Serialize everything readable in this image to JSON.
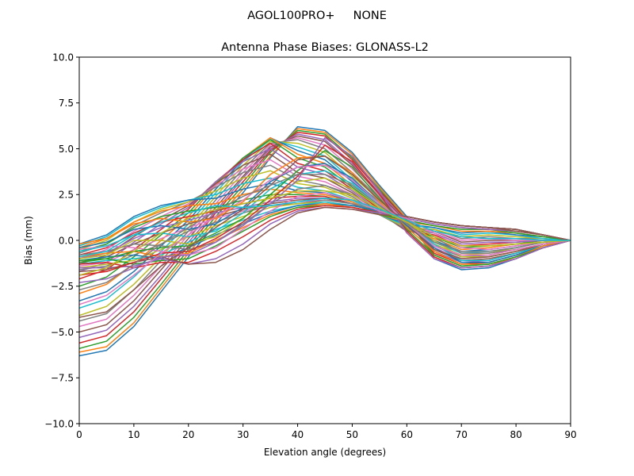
{
  "figure": {
    "suptitle": "AGOL100PRO+     NONE"
  },
  "chart_data": {
    "type": "line",
    "title": "Antenna Phase Biases: GLONASS-L2",
    "xlabel": "Elevation angle (degrees)",
    "ylabel": "Bias (mm)",
    "xlim": [
      0,
      90
    ],
    "ylim": [
      -10,
      10
    ],
    "xticks": [
      0,
      10,
      20,
      30,
      40,
      50,
      60,
      70,
      80,
      90
    ],
    "yticks": [
      -10.0,
      -7.5,
      -5.0,
      -2.5,
      0.0,
      2.5,
      5.0,
      7.5,
      10.0
    ],
    "xtick_labels": [
      "0",
      "10",
      "20",
      "30",
      "40",
      "50",
      "60",
      "70",
      "80",
      "90"
    ],
    "ytick_labels": [
      "−10.0",
      "−7.5",
      "−5.0",
      "−2.5",
      "0.0",
      "2.5",
      "5.0",
      "7.5",
      "10.0"
    ],
    "grid": false,
    "legend": "none",
    "x": [
      0,
      5,
      10,
      15,
      20,
      25,
      30,
      35,
      40,
      45,
      50,
      55,
      60,
      65,
      70,
      75,
      80,
      85,
      90
    ],
    "series_colors": [
      "#1f77b4",
      "#ff7f0e",
      "#2ca02c",
      "#d62728",
      "#9467bd",
      "#8c564b",
      "#e377c2",
      "#7f7f7f",
      "#bcbd22",
      "#17becf"
    ],
    "series": [
      {
        "values": [
          -6.3,
          -6.0,
          -4.7,
          -2.8,
          -0.9,
          0.9,
          2.6,
          4.5,
          6.2,
          6.0,
          4.8,
          3.0,
          1.3,
          -1.0,
          -1.6,
          -1.5,
          -1.0,
          -0.4,
          0.0
        ]
      },
      {
        "values": [
          -6.1,
          -5.8,
          -4.5,
          -2.6,
          -0.7,
          1.1,
          2.8,
          4.6,
          6.1,
          5.9,
          4.7,
          2.9,
          1.2,
          -0.9,
          -1.5,
          -1.4,
          -0.9,
          -0.4,
          0.0
        ]
      },
      {
        "values": [
          -5.9,
          -5.5,
          -4.2,
          -2.4,
          -0.5,
          1.3,
          3.0,
          4.8,
          6.0,
          5.8,
          4.5,
          2.8,
          1.1,
          -0.8,
          -1.4,
          -1.3,
          -0.9,
          -0.3,
          0.0
        ]
      },
      {
        "values": [
          -5.6,
          -5.2,
          -3.9,
          -2.1,
          -0.3,
          1.5,
          3.2,
          4.9,
          5.9,
          5.7,
          4.4,
          2.7,
          1.1,
          -0.7,
          -1.3,
          -1.2,
          -0.8,
          -0.3,
          0.0
        ]
      },
      {
        "values": [
          -5.3,
          -4.9,
          -3.6,
          -1.9,
          -0.1,
          1.6,
          3.4,
          5.0,
          5.8,
          5.5,
          4.2,
          2.6,
          1.0,
          -0.6,
          -1.2,
          -1.1,
          -0.7,
          -0.3,
          0.0
        ]
      },
      {
        "values": [
          -5.0,
          -4.6,
          -3.3,
          -1.6,
          0.1,
          1.8,
          3.5,
          5.1,
          5.7,
          5.4,
          4.1,
          2.5,
          1.0,
          -0.5,
          -1.1,
          -1.0,
          -0.7,
          -0.2,
          0.0
        ]
      },
      {
        "values": [
          -4.7,
          -4.3,
          -3.0,
          -1.4,
          0.3,
          2.0,
          3.7,
          5.2,
          5.6,
          5.2,
          3.9,
          2.4,
          0.9,
          -0.4,
          -1.0,
          -0.9,
          -0.6,
          -0.2,
          0.0
        ]
      },
      {
        "values": [
          -4.4,
          -4.0,
          -2.7,
          -1.1,
          0.5,
          2.2,
          3.9,
          5.3,
          5.5,
          5.0,
          3.7,
          2.3,
          0.8,
          -0.3,
          -0.9,
          -0.8,
          -0.5,
          -0.2,
          0.0
        ]
      },
      {
        "values": [
          -4.1,
          -3.6,
          -2.4,
          -0.9,
          0.7,
          2.4,
          4.1,
          5.4,
          5.3,
          4.8,
          3.5,
          2.2,
          0.8,
          -0.2,
          -0.8,
          -0.7,
          -0.4,
          -0.1,
          0.0
        ]
      },
      {
        "values": [
          -3.7,
          -3.2,
          -2.0,
          -0.6,
          0.9,
          2.6,
          4.3,
          5.5,
          5.1,
          4.6,
          3.3,
          2.1,
          0.7,
          -0.1,
          -0.7,
          -0.6,
          -0.4,
          -0.1,
          0.0
        ]
      },
      {
        "values": [
          -3.3,
          -2.8,
          -1.7,
          -0.3,
          1.1,
          2.8,
          4.4,
          5.6,
          4.9,
          4.4,
          3.2,
          2.0,
          0.7,
          0.0,
          -0.6,
          -0.5,
          -0.3,
          -0.1,
          0.0
        ]
      },
      {
        "values": [
          -2.9,
          -2.4,
          -1.3,
          0.0,
          1.3,
          3.0,
          4.5,
          5.6,
          4.7,
          4.2,
          3.0,
          1.9,
          0.6,
          0.1,
          -0.5,
          -0.4,
          -0.2,
          -0.1,
          0.0
        ]
      },
      {
        "values": [
          -2.5,
          -2.0,
          -0.9,
          0.3,
          1.5,
          3.1,
          4.5,
          5.5,
          4.5,
          4.0,
          2.9,
          1.8,
          0.6,
          0.2,
          -0.4,
          -0.3,
          -0.2,
          0.0,
          0.0
        ]
      },
      {
        "values": [
          -2.1,
          -1.6,
          -0.5,
          0.6,
          1.7,
          3.2,
          4.4,
          5.3,
          4.2,
          3.8,
          2.8,
          1.7,
          0.5,
          0.3,
          -0.3,
          -0.2,
          -0.1,
          0.0,
          0.0
        ]
      },
      {
        "values": [
          -1.7,
          -1.2,
          -0.1,
          0.9,
          1.8,
          3.2,
          4.3,
          5.0,
          4.0,
          3.6,
          2.7,
          1.6,
          0.5,
          0.4,
          -0.2,
          -0.1,
          -0.1,
          0.0,
          0.0
        ]
      },
      {
        "values": [
          -1.3,
          -0.8,
          0.2,
          1.1,
          1.9,
          3.1,
          4.1,
          4.7,
          3.7,
          3.4,
          2.6,
          1.5,
          0.5,
          0.5,
          -0.1,
          0.0,
          0.0,
          0.0,
          0.0
        ]
      },
      {
        "values": [
          -1.0,
          -0.5,
          0.5,
          1.3,
          2.0,
          3.0,
          3.9,
          4.4,
          3.5,
          3.2,
          2.5,
          1.5,
          0.6,
          0.5,
          0.0,
          0.1,
          0.0,
          0.0,
          0.0
        ]
      },
      {
        "values": [
          -0.7,
          -0.2,
          0.8,
          1.5,
          2.1,
          2.9,
          3.7,
          4.1,
          3.3,
          3.0,
          2.4,
          1.4,
          0.6,
          0.6,
          0.1,
          0.2,
          0.1,
          0.1,
          0.0
        ]
      },
      {
        "values": [
          -0.5,
          0.0,
          1.0,
          1.7,
          2.1,
          2.7,
          3.4,
          3.8,
          3.1,
          2.9,
          2.3,
          1.4,
          0.7,
          0.6,
          0.2,
          0.3,
          0.2,
          0.1,
          0.0
        ]
      },
      {
        "values": [
          -0.3,
          0.2,
          1.2,
          1.8,
          2.2,
          2.5,
          3.1,
          3.4,
          2.9,
          2.7,
          2.2,
          1.4,
          0.8,
          0.7,
          0.3,
          0.4,
          0.3,
          0.1,
          0.0
        ]
      },
      {
        "values": [
          -0.2,
          0.3,
          1.3,
          1.9,
          2.2,
          2.3,
          2.8,
          3.1,
          2.7,
          2.6,
          2.1,
          1.4,
          0.9,
          0.7,
          0.4,
          0.5,
          0.3,
          0.2,
          0.0
        ]
      },
      {
        "values": [
          -0.4,
          0.1,
          1.0,
          1.6,
          1.9,
          2.0,
          2.5,
          2.8,
          2.6,
          2.5,
          2.1,
          1.4,
          1.0,
          0.8,
          0.5,
          0.5,
          0.4,
          0.2,
          0.0
        ]
      },
      {
        "values": [
          -0.6,
          -0.2,
          0.7,
          1.3,
          1.6,
          1.8,
          2.2,
          2.5,
          2.5,
          2.4,
          2.0,
          1.4,
          1.1,
          0.8,
          0.6,
          0.6,
          0.4,
          0.2,
          0.0
        ]
      },
      {
        "values": [
          -0.8,
          -0.4,
          0.4,
          1.0,
          1.3,
          1.6,
          2.0,
          2.3,
          2.4,
          2.4,
          2.0,
          1.5,
          1.2,
          0.9,
          0.7,
          0.6,
          0.5,
          0.3,
          0.0
        ]
      },
      {
        "values": [
          -1.0,
          -0.7,
          0.1,
          0.7,
          1.1,
          1.5,
          1.8,
          2.1,
          2.3,
          2.3,
          2.0,
          1.5,
          1.2,
          0.9,
          0.7,
          0.6,
          0.5,
          0.3,
          0.0
        ]
      },
      {
        "values": [
          -1.2,
          -0.9,
          -0.2,
          0.4,
          0.9,
          1.3,
          1.7,
          2.0,
          2.2,
          2.3,
          2.0,
          1.5,
          1.3,
          1.0,
          0.8,
          0.7,
          0.5,
          0.3,
          0.0
        ]
      },
      {
        "values": [
          -1.4,
          -1.2,
          -0.5,
          0.1,
          0.7,
          1.2,
          1.6,
          1.9,
          2.1,
          2.2,
          2.0,
          1.6,
          1.3,
          1.0,
          0.8,
          0.7,
          0.6,
          0.3,
          0.0
        ]
      },
      {
        "values": [
          -1.6,
          -1.4,
          -0.8,
          -0.2,
          0.5,
          1.0,
          1.5,
          1.9,
          2.0,
          2.2,
          2.0,
          1.6,
          1.3,
          1.0,
          0.8,
          0.7,
          0.6,
          0.3,
          0.0
        ]
      },
      {
        "values": [
          -1.5,
          -1.3,
          -1.1,
          -0.5,
          0.2,
          0.8,
          1.3,
          1.8,
          2.0,
          2.1,
          1.9,
          1.6,
          1.3,
          1.0,
          0.8,
          0.7,
          0.6,
          0.3,
          0.0
        ]
      },
      {
        "values": [
          -1.3,
          -1.1,
          -1.0,
          -0.8,
          -0.1,
          0.6,
          1.1,
          1.6,
          1.9,
          2.1,
          1.9,
          1.6,
          1.3,
          1.0,
          0.8,
          0.7,
          0.6,
          0.3,
          0.0
        ]
      },
      {
        "values": [
          -1.1,
          -0.9,
          -0.8,
          -1.0,
          -0.4,
          0.3,
          0.9,
          1.5,
          1.9,
          2.0,
          1.9,
          1.6,
          1.3,
          1.0,
          0.8,
          0.7,
          0.6,
          0.3,
          0.0
        ]
      },
      {
        "values": [
          -0.9,
          -0.7,
          -0.6,
          -0.9,
          -0.7,
          0.0,
          0.7,
          1.4,
          1.8,
          2.0,
          1.8,
          1.5,
          1.3,
          1.0,
          0.8,
          0.7,
          0.6,
          0.3,
          0.0
        ]
      },
      {
        "values": [
          -1.1,
          -1.0,
          -1.3,
          -1.1,
          -1.0,
          -0.3,
          0.5,
          1.3,
          1.8,
          1.9,
          1.8,
          1.5,
          1.3,
          1.0,
          0.8,
          0.7,
          0.6,
          0.3,
          0.0
        ]
      },
      {
        "values": [
          -1.3,
          -1.2,
          -1.5,
          -1.2,
          -1.2,
          -0.6,
          0.2,
          1.1,
          1.7,
          1.9,
          1.8,
          1.5,
          1.3,
          1.0,
          0.8,
          0.7,
          0.6,
          0.3,
          0.0
        ]
      },
      {
        "values": [
          -1.5,
          -1.5,
          -1.4,
          -1.0,
          -1.3,
          -1.0,
          -0.2,
          0.9,
          1.6,
          1.8,
          1.7,
          1.5,
          1.3,
          1.0,
          0.8,
          0.7,
          0.6,
          0.3,
          0.0
        ]
      },
      {
        "values": [
          -1.7,
          -1.6,
          -1.2,
          -0.9,
          -1.3,
          -1.2,
          -0.5,
          0.6,
          1.5,
          1.8,
          1.7,
          1.4,
          1.3,
          1.0,
          0.8,
          0.7,
          0.6,
          0.3,
          0.0
        ]
      },
      {
        "values": [
          -0.5,
          -0.3,
          -0.4,
          -0.6,
          -0.8,
          -0.4,
          0.6,
          1.6,
          2.4,
          2.6,
          2.2,
          1.6,
          1.2,
          0.4,
          -0.4,
          -0.5,
          -0.3,
          -0.1,
          0.0
        ]
      },
      {
        "values": [
          -0.8,
          -0.6,
          -0.2,
          -0.3,
          -0.5,
          -0.1,
          0.9,
          2.0,
          2.8,
          3.0,
          2.5,
          1.7,
          1.1,
          0.2,
          -0.7,
          -0.7,
          -0.5,
          -0.2,
          0.0
        ]
      },
      {
        "values": [
          -1.0,
          -0.8,
          0.0,
          0.0,
          -0.2,
          0.2,
          1.2,
          2.4,
          3.2,
          3.4,
          2.8,
          1.8,
          1.0,
          0.0,
          -0.9,
          -0.9,
          -0.6,
          -0.2,
          0.0
        ]
      },
      {
        "values": [
          -0.6,
          -0.3,
          0.3,
          0.4,
          0.2,
          0.5,
          1.5,
          2.8,
          3.6,
          3.8,
          3.1,
          1.9,
          0.9,
          -0.2,
          -1.1,
          -1.1,
          -0.7,
          -0.3,
          0.0
        ]
      },
      {
        "values": [
          -0.4,
          -0.1,
          0.6,
          0.8,
          0.6,
          0.9,
          1.8,
          3.2,
          4.0,
          4.2,
          3.4,
          2.0,
          0.8,
          -0.4,
          -1.2,
          -1.2,
          -0.8,
          -0.3,
          0.0
        ]
      },
      {
        "values": [
          -0.2,
          0.1,
          0.9,
          1.2,
          1.0,
          1.2,
          2.1,
          3.6,
          4.5,
          4.6,
          3.7,
          2.1,
          0.7,
          -0.6,
          -1.3,
          -1.3,
          -0.9,
          -0.3,
          0.0
        ]
      },
      {
        "values": [
          -1.2,
          -1.0,
          -0.6,
          -0.4,
          -0.3,
          0.4,
          1.2,
          2.5,
          3.8,
          4.9,
          4.0,
          2.3,
          0.6,
          -0.8,
          -1.4,
          -1.3,
          -0.9,
          -0.4,
          0.0
        ]
      },
      {
        "values": [
          -1.9,
          -1.7,
          -1.2,
          -0.7,
          -0.6,
          0.1,
          1.0,
          2.2,
          3.5,
          5.2,
          4.3,
          2.5,
          0.5,
          -0.9,
          -1.5,
          -1.4,
          -1.0,
          -0.4,
          0.0
        ]
      },
      {
        "values": [
          -2.3,
          -2.1,
          -1.5,
          -0.9,
          -0.8,
          -0.1,
          0.8,
          2.0,
          3.3,
          5.6,
          4.6,
          2.7,
          0.4,
          -1.0,
          -1.5,
          -1.4,
          -1.0,
          -0.4,
          0.0
        ]
      },
      {
        "values": [
          -4.2,
          -3.9,
          -2.7,
          -1.4,
          -0.4,
          0.7,
          1.7,
          3.0,
          4.4,
          4.6,
          3.6,
          2.2,
          0.9,
          -0.5,
          -1.0,
          -0.9,
          -0.6,
          -0.2,
          0.0
        ]
      },
      {
        "values": [
          -3.5,
          -3.0,
          -1.9,
          -0.7,
          0.3,
          1.3,
          2.2,
          3.3,
          4.0,
          4.1,
          3.3,
          2.0,
          0.9,
          -0.3,
          -0.8,
          -0.8,
          -0.5,
          -0.2,
          0.0
        ]
      },
      {
        "values": [
          -2.7,
          -2.3,
          -1.3,
          -0.2,
          0.7,
          1.6,
          2.4,
          3.0,
          3.6,
          3.6,
          3.0,
          1.9,
          0.9,
          -0.1,
          -0.6,
          -0.6,
          -0.4,
          -0.1,
          0.0
        ]
      },
      {
        "values": [
          -1.9,
          -1.5,
          -0.6,
          0.4,
          1.2,
          1.7,
          2.0,
          2.3,
          2.7,
          2.7,
          2.5,
          1.7,
          1.0,
          0.2,
          -0.3,
          -0.3,
          -0.2,
          -0.1,
          0.0
        ]
      },
      {
        "values": [
          -0.9,
          -0.6,
          0.3,
          1.0,
          1.5,
          1.9,
          1.8,
          1.9,
          2.1,
          2.3,
          2.2,
          1.7,
          1.1,
          0.5,
          0.2,
          0.1,
          0.1,
          0.0,
          0.0
        ]
      }
    ]
  }
}
